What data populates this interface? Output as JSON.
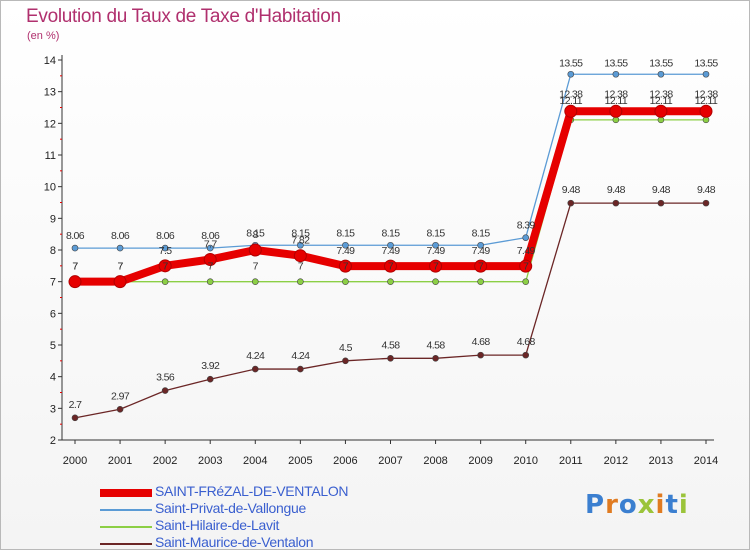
{
  "header": {
    "title": "Evolution du Taux de Taxe d'Habitation",
    "subtitle": "(en %)"
  },
  "logo": {
    "text": "Proxiti",
    "colors": [
      "#3b7fd0",
      "#e07b21",
      "#3b7fd0",
      "#9bc43a",
      "#e07b21",
      "#3b7fd0",
      "#9bc43a"
    ]
  },
  "chart_data": {
    "type": "line",
    "x": [
      2000,
      2001,
      2002,
      2003,
      2004,
      2005,
      2006,
      2007,
      2008,
      2009,
      2010,
      2011,
      2012,
      2013,
      2014
    ],
    "ylim": [
      2,
      14
    ],
    "yticks": [
      2,
      3,
      4,
      5,
      6,
      7,
      8,
      9,
      10,
      11,
      12,
      13,
      14
    ],
    "grid": false,
    "legend_position": "bottom-left",
    "series": [
      {
        "name": "SAINT-FRéZAL-DE-VENTALON",
        "color": "#e60000",
        "values": [
          7,
          7,
          7.5,
          7.7,
          8,
          7.82,
          7.49,
          7.49,
          7.49,
          7.49,
          7.49,
          12.38,
          12.38,
          12.38,
          12.38
        ],
        "labels": [
          "7",
          "7",
          "7.5",
          "7.7",
          "8",
          "7.82",
          "7.49",
          "7.49",
          "7.49",
          "7.49",
          "7.49",
          "12.38",
          "12.38",
          "12.38",
          "12.38"
        ]
      },
      {
        "name": "Saint-Privat-de-Vallongue",
        "color": "#5b9bd5",
        "values": [
          8.06,
          8.06,
          8.06,
          8.06,
          8.15,
          8.15,
          8.15,
          8.15,
          8.15,
          8.15,
          8.39,
          13.55,
          13.55,
          13.55,
          13.55
        ],
        "labels": [
          "8.06",
          "8.06",
          "8.06",
          "8.06",
          "8.15",
          "8.15",
          "8.15",
          "8.15",
          "8.15",
          "8.15",
          "8.39",
          "13.55",
          "13.55",
          "13.55",
          "13.55"
        ]
      },
      {
        "name": "Saint-Hilaire-de-Lavit",
        "color": "#8ccf45",
        "values": [
          7,
          7,
          7,
          7,
          7,
          7,
          7,
          7,
          7,
          7,
          7,
          12.11,
          12.11,
          12.11,
          12.11
        ],
        "labels": [
          "7",
          "7",
          "7",
          "7",
          "7",
          "7",
          "7",
          "7",
          "7",
          "7",
          "7",
          "12.11",
          "12.11",
          "12.11",
          "12.11"
        ]
      },
      {
        "name": "Saint-Maurice-de-Ventalon",
        "color": "#6b2626",
        "values": [
          2.7,
          2.97,
          3.56,
          3.92,
          4.24,
          4.24,
          4.5,
          4.58,
          4.58,
          4.68,
          4.68,
          9.48,
          9.48,
          9.48,
          9.48
        ],
        "labels": [
          "2.7",
          "2.97",
          "3.56",
          "3.92",
          "4.24",
          "4.24",
          "4.5",
          "4.58",
          "4.58",
          "4.68",
          "4.68",
          "9.48",
          "9.48",
          "9.48",
          "9.48"
        ]
      }
    ]
  }
}
